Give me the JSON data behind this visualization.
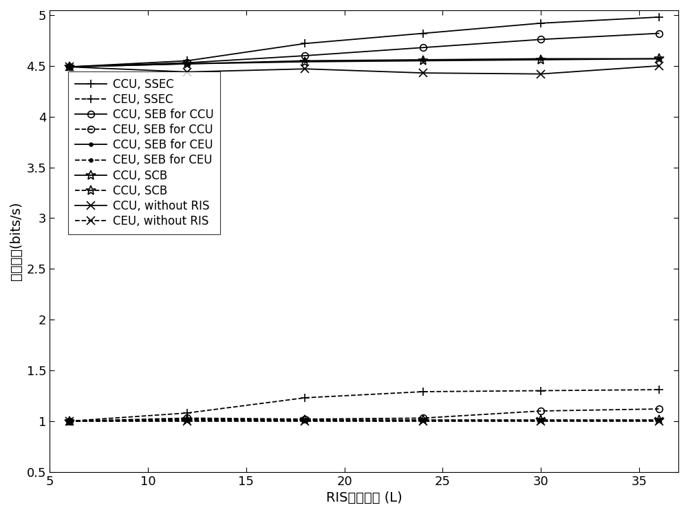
{
  "x": [
    6,
    12,
    18,
    24,
    30,
    36
  ],
  "series": [
    {
      "label": "CCU, SSEC",
      "linestyle": "-",
      "marker": "+",
      "markersize": 9,
      "linewidth": 1.3,
      "color": "#000000",
      "markerfacecolor": "none",
      "y": [
        4.49,
        4.55,
        4.72,
        4.82,
        4.92,
        4.98
      ]
    },
    {
      "label": "CEU, SSEC",
      "linestyle": "--",
      "marker": "+",
      "markersize": 9,
      "linewidth": 1.3,
      "color": "#000000",
      "markerfacecolor": "none",
      "y": [
        1.0,
        1.08,
        1.23,
        1.29,
        1.3,
        1.31
      ]
    },
    {
      "label": "CCU, SEB for CCU",
      "linestyle": "-",
      "marker": "o",
      "markersize": 7,
      "linewidth": 1.3,
      "color": "#000000",
      "markerfacecolor": "none",
      "y": [
        4.49,
        4.53,
        4.6,
        4.68,
        4.76,
        4.82
      ]
    },
    {
      "label": "CEU, SEB for CCU",
      "linestyle": "--",
      "marker": "o",
      "markersize": 7,
      "linewidth": 1.3,
      "color": "#000000",
      "markerfacecolor": "none",
      "y": [
        1.0,
        1.03,
        1.02,
        1.03,
        1.1,
        1.12
      ]
    },
    {
      "label": "CCU, SEB for CEU",
      "linestyle": "-",
      "marker": ".",
      "markersize": 7,
      "linewidth": 1.3,
      "color": "#000000",
      "markerfacecolor": "#000000",
      "y": [
        4.49,
        4.52,
        4.55,
        4.56,
        4.57,
        4.57
      ]
    },
    {
      "label": "CEU, SEB for CEU",
      "linestyle": "--",
      "marker": ".",
      "markersize": 7,
      "linewidth": 1.3,
      "color": "#000000",
      "markerfacecolor": "#000000",
      "y": [
        1.0,
        1.02,
        1.01,
        1.01,
        1.01,
        1.01
      ]
    },
    {
      "label": "CCU, SCB",
      "linestyle": "-",
      "marker": "*",
      "markersize": 10,
      "linewidth": 1.3,
      "color": "#000000",
      "markerfacecolor": "none",
      "y": [
        4.49,
        4.52,
        4.54,
        4.55,
        4.56,
        4.57
      ]
    },
    {
      "label": "CCU, SCB",
      "linestyle": "--",
      "marker": "*",
      "markersize": 10,
      "linewidth": 1.3,
      "color": "#000000",
      "markerfacecolor": "none",
      "y": [
        1.0,
        1.01,
        1.01,
        1.01,
        1.01,
        1.01
      ]
    },
    {
      "label": "CCU, without RIS",
      "linestyle": "-",
      "marker": "x",
      "markersize": 8,
      "linewidth": 1.3,
      "color": "#000000",
      "markerfacecolor": "none",
      "y": [
        4.49,
        4.44,
        4.47,
        4.43,
        4.42,
        4.5
      ]
    },
    {
      "label": "CEU, without RIS",
      "linestyle": "--",
      "marker": "x",
      "markersize": 8,
      "linewidth": 1.3,
      "color": "#000000",
      "markerfacecolor": "none",
      "y": [
        1.0,
        1.0,
        1.0,
        1.0,
        1.0,
        1.0
      ]
    }
  ],
  "xlabel": "RIS元素数量 (L)",
  "ylabel": "通信速率(bits/s)",
  "xlim": [
    5,
    37
  ],
  "ylim": [
    0.5,
    5.05
  ],
  "xticks": [
    5,
    10,
    15,
    20,
    25,
    30,
    35
  ],
  "xtick_labels": [
    "5",
    "10",
    "15",
    "20",
    "25",
    "30",
    "35"
  ],
  "yticks": [
    0.5,
    1.0,
    1.5,
    2.0,
    2.5,
    3.0,
    3.5,
    4.0,
    4.5,
    5.0
  ],
  "ytick_labels": [
    "0.5",
    "1",
    "1.5",
    "2",
    "2.5",
    "3",
    "3.5",
    "4",
    "4.5",
    "5"
  ],
  "background_color": "#ffffff",
  "legend_fontsize": 12,
  "axis_fontsize": 14,
  "tick_fontsize": 13
}
